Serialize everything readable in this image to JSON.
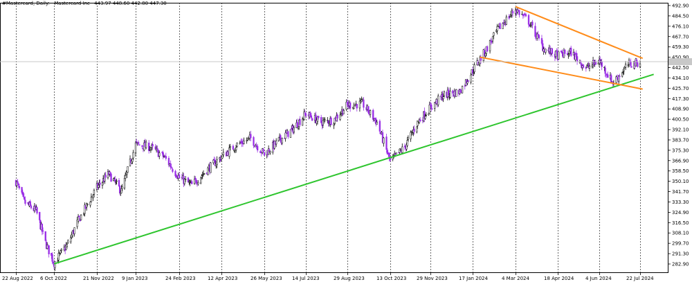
{
  "header": {
    "symbol": "#Mastercard, Daily:",
    "name": "Mastercard Inc",
    "ohlc": "443.97 448.60 442.80 447.30"
  },
  "chart_data": {
    "type": "candlestick",
    "title": "#Mastercard, Daily: Mastercard Inc",
    "ylim": [
      276.0,
      496.0
    ],
    "y_ticks": [
      "492.90",
      "484.50",
      "476.10",
      "467.70",
      "459.30",
      "450.90",
      "442.50",
      "434.10",
      "425.70",
      "417.30",
      "408.90",
      "400.50",
      "392.10",
      "383.70",
      "375.30",
      "366.90",
      "358.50",
      "350.10",
      "341.70",
      "333.30",
      "324.90",
      "316.50",
      "308.10",
      "299.70",
      "291.30",
      "282.90"
    ],
    "current_price": 447.3,
    "x_ticks": [
      "22 Aug 2022",
      "6 Oct 2022",
      "21 Nov 2022",
      "9 Jan 2023",
      "24 Feb 2023",
      "12 Apr 2023",
      "26 May 2023",
      "14 Jul 2023",
      "29 Aug 2023",
      "13 Oct 2023",
      "29 Nov 2023",
      "17 Jan 2024",
      "4 Mar 2024",
      "18 Apr 2024",
      "4 Jun 2024",
      "22 Jul 2024"
    ],
    "close_path": [
      {
        "x": "22 Aug 2022",
        "y": 350
      },
      {
        "x": "1 Sep 2022",
        "y": 333
      },
      {
        "x": "15 Sep 2022",
        "y": 326
      },
      {
        "x": "26 Sep 2022",
        "y": 300
      },
      {
        "x": "6 Oct 2022",
        "y": 284
      },
      {
        "x": "20 Oct 2022",
        "y": 298
      },
      {
        "x": "1 Nov 2022",
        "y": 318
      },
      {
        "x": "21 Nov 2022",
        "y": 345
      },
      {
        "x": "6 Dec 2022",
        "y": 356
      },
      {
        "x": "22 Dec 2022",
        "y": 342
      },
      {
        "x": "9 Jan 2023",
        "y": 380
      },
      {
        "x": "24 Jan 2023",
        "y": 378
      },
      {
        "x": "8 Feb 2023",
        "y": 370
      },
      {
        "x": "24 Feb 2023",
        "y": 353
      },
      {
        "x": "10 Mar 2023",
        "y": 347
      },
      {
        "x": "28 Mar 2023",
        "y": 360
      },
      {
        "x": "12 Apr 2023",
        "y": 370
      },
      {
        "x": "28 Apr 2023",
        "y": 380
      },
      {
        "x": "12 May 2023",
        "y": 385
      },
      {
        "x": "26 May 2023",
        "y": 372
      },
      {
        "x": "12 Jun 2023",
        "y": 383
      },
      {
        "x": "28 Jun 2023",
        "y": 392
      },
      {
        "x": "14 Jul 2023",
        "y": 405
      },
      {
        "x": "31 Jul 2023",
        "y": 398
      },
      {
        "x": "14 Aug 2023",
        "y": 400
      },
      {
        "x": "29 Aug 2023",
        "y": 412
      },
      {
        "x": "14 Sep 2023",
        "y": 413
      },
      {
        "x": "29 Sep 2023",
        "y": 398
      },
      {
        "x": "13 Oct 2023",
        "y": 366
      },
      {
        "x": "30 Oct 2023",
        "y": 378
      },
      {
        "x": "14 Nov 2023",
        "y": 398
      },
      {
        "x": "29 Nov 2023",
        "y": 410
      },
      {
        "x": "14 Dec 2023",
        "y": 420
      },
      {
        "x": "2 Jan 2024",
        "y": 423
      },
      {
        "x": "17 Jan 2024",
        "y": 440
      },
      {
        "x": "31 Jan 2024",
        "y": 456
      },
      {
        "x": "14 Feb 2024",
        "y": 474
      },
      {
        "x": "4 Mar 2024",
        "y": 490
      },
      {
        "x": "18 Mar 2024",
        "y": 480
      },
      {
        "x": "3 Apr 2024",
        "y": 458
      },
      {
        "x": "18 Apr 2024",
        "y": 452
      },
      {
        "x": "3 May 2024",
        "y": 455
      },
      {
        "x": "20 May 2024",
        "y": 442
      },
      {
        "x": "4 Jun 2024",
        "y": 448
      },
      {
        "x": "20 Jun 2024",
        "y": 430
      },
      {
        "x": "8 Jul 2024",
        "y": 445
      },
      {
        "x": "22 Jul 2024",
        "y": 447
      }
    ],
    "trendlines": [
      {
        "name": "support",
        "color": "#2ec52e",
        "from": {
          "x": "6 Oct 2022",
          "y": 283
        },
        "to": {
          "x": "7 Aug 2024",
          "y": 437
        }
      },
      {
        "name": "wedge-upper",
        "color": "#ff8c1a",
        "from": {
          "x": "4 Mar 2024",
          "y": 492
        },
        "to": {
          "x": "25 Jul 2024",
          "y": 450
        }
      },
      {
        "name": "wedge-lower",
        "color": "#ff8c1a",
        "from": {
          "x": "25 Jan 2024",
          "y": 451
        },
        "to": {
          "x": "25 Jul 2024",
          "y": 425
        }
      }
    ],
    "colors": {
      "bull": "#000000",
      "bear": "#9a2ee6",
      "support": "#2ec52e",
      "wedge": "#ff8c1a"
    }
  }
}
